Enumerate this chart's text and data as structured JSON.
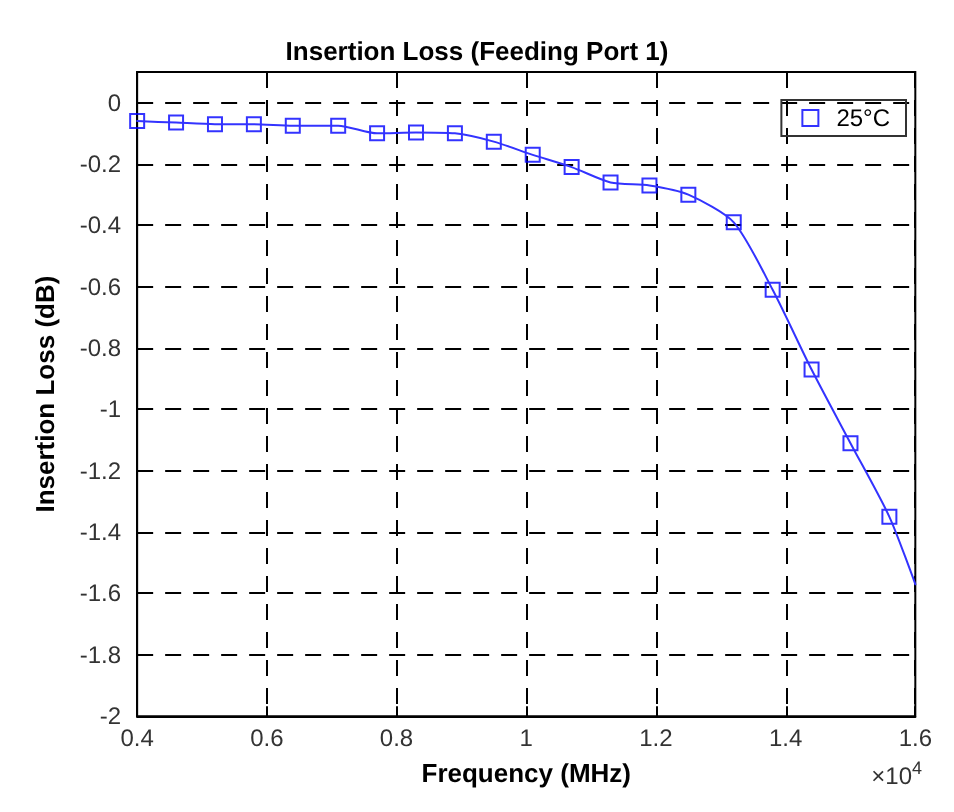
{
  "chart_data": {
    "type": "line",
    "title": "Insertion Loss (Feeding Port 1)",
    "xlabel": "Frequency (MHz)",
    "ylabel": "Insertion Loss (dB)",
    "annotations": [
      "×10$^{4}$"
    ],
    "series": [
      {
        "color": "#3333ff",
        "marker": "none",
        "x": [
          0.4,
          0.46,
          0.52,
          0.58,
          0.64,
          0.71,
          0.77,
          0.83,
          0.89,
          0.95,
          1.01,
          1.07,
          1.13,
          1.19,
          1.25,
          1.32,
          1.38,
          1.44,
          1.5,
          1.56,
          1.6
        ],
        "values": [
          -0.06,
          -0.065,
          -0.07,
          -0.07,
          -0.075,
          -0.075,
          -0.1,
          -0.097,
          -0.1,
          -0.127,
          -0.17,
          -0.21,
          -0.26,
          -0.27,
          -0.3,
          -0.39,
          -0.61,
          -0.87,
          -1.11,
          -1.35,
          -1.57
        ]
      },
      {
        "type": "scatter",
        "name": "25°C",
        "color": "#0000ff",
        "marker": "square",
        "x": [
          0.4,
          0.46,
          0.52,
          0.58,
          0.64,
          0.71,
          0.77,
          0.83,
          0.89,
          0.95,
          1.01,
          1.07,
          1.13,
          1.19,
          1.25,
          1.32,
          1.38,
          1.44,
          1.5,
          1.56
        ],
        "values": [
          -0.06,
          -0.065,
          -0.07,
          -0.07,
          -0.075,
          -0.075,
          -0.1,
          -0.097,
          -0.1,
          -0.127,
          -0.17,
          -0.21,
          -0.26,
          -0.27,
          -0.3,
          -0.39,
          -0.61,
          -0.87,
          -1.11,
          -1.35
        ]
      }
    ],
    "xlim": [
      0.4,
      1.6
    ],
    "xticks": [
      0.4,
      0.6,
      0.8,
      1,
      1.2,
      1.4,
      1.6
    ],
    "ylim": [
      -2,
      0.1
    ],
    "yticks": [
      -2,
      -1.8,
      -1.6,
      -1.4,
      -1.2,
      -1,
      -0.8,
      -0.6,
      -0.4,
      -0.2,
      0
    ],
    "grid": true,
    "legend": "top right",
    "line_style": "solid"
  }
}
